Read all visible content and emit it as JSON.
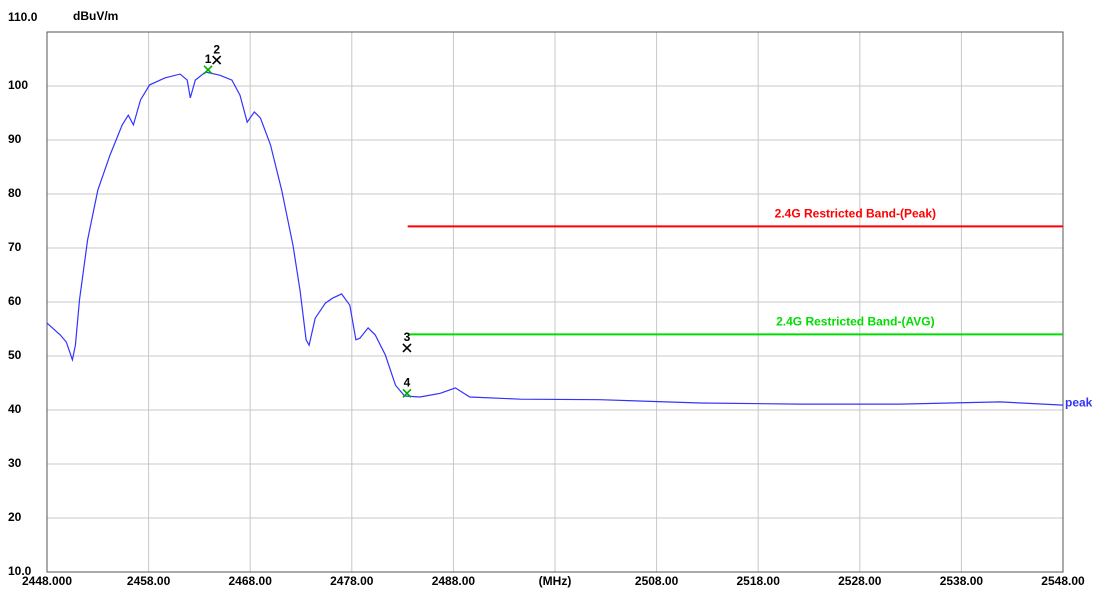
{
  "chart_data": {
    "type": "line",
    "y_unit": "dBuV/m",
    "xlim": [
      2448,
      2548
    ],
    "ylim": [
      10,
      110
    ],
    "grid": true,
    "xticks": [
      {
        "value": 2448,
        "label": "2448.000"
      },
      {
        "value": 2458,
        "label": "2458.00"
      },
      {
        "value": 2468,
        "label": "2468.00"
      },
      {
        "value": 2478,
        "label": "2478.00"
      },
      {
        "value": 2488,
        "label": "2488.00"
      },
      {
        "value": 2498,
        "label": "(MHz)"
      },
      {
        "value": 2508,
        "label": "2508.00"
      },
      {
        "value": 2518,
        "label": "2518.00"
      },
      {
        "value": 2528,
        "label": "2528.00"
      },
      {
        "value": 2538,
        "label": "2538.00"
      },
      {
        "value": 2548,
        "label": "2548.00"
      }
    ],
    "yticks": [
      {
        "value": 110,
        "label": "110.0"
      },
      100,
      90,
      80,
      70,
      60,
      50,
      40,
      30,
      20,
      {
        "value": 10,
        "label": "10.0"
      }
    ],
    "x": [
      2448,
      2449.3,
      2449.9,
      2450.5,
      2450.8,
      2451.2,
      2452,
      2453,
      2454.2,
      2455.4,
      2456,
      2456.5,
      2457.2,
      2458.1,
      2459.6,
      2461.1,
      2461.8,
      2462.1,
      2462.6,
      2463.6,
      2465,
      2466.2,
      2467,
      2467.7,
      2468.4,
      2469,
      2470,
      2471.1,
      2472.2,
      2472.9,
      2473.5,
      2473.8,
      2474.4,
      2475.4,
      2476.1,
      2477,
      2477.8,
      2478.4,
      2478.8,
      2479.6,
      2480.3,
      2481.3,
      2482.3,
      2483.2,
      2484.7,
      2486.7,
      2488.2,
      2489.6,
      2494.6,
      2502.4,
      2512.3,
      2522.1,
      2532,
      2541.8,
      2548
    ],
    "series": [
      {
        "name": "peak",
        "color": "#3333ff",
        "values": [
          56.1,
          53.9,
          52.6,
          49.3,
          52,
          60.4,
          71.5,
          80.7,
          87.2,
          92.8,
          94.6,
          92.8,
          97.4,
          100.2,
          101.5,
          102.2,
          101.1,
          97.8,
          101.1,
          102.6,
          102,
          101.1,
          98.3,
          93.3,
          95.2,
          94.1,
          89.1,
          80.7,
          70.6,
          62.2,
          53,
          52,
          57,
          59.8,
          60.7,
          61.5,
          59.4,
          53,
          53.3,
          55.2,
          53.9,
          50.2,
          44.6,
          42.6,
          42.4,
          43.1,
          44.1,
          42.4,
          42,
          41.9,
          41.3,
          41.1,
          41.1,
          41.5,
          40.9
        ]
      }
    ],
    "limits": [
      {
        "name": "2.4G Restricted Band-(Peak)",
        "color": "#ff0000",
        "value": 74,
        "x_start": 2483.5,
        "x_end": 2548
      },
      {
        "name": "2.4G Restricted Band-(AVG)",
        "color": "#00dd00",
        "value": 54,
        "x_start": 2483.5,
        "x_end": 2548
      }
    ],
    "markers": [
      {
        "label": "1",
        "x": 2463.85,
        "y": 103.0,
        "color": "#00aa00"
      },
      {
        "label": "2",
        "x": 2464.7,
        "y": 104.8,
        "color": "#000000"
      },
      {
        "label": "3",
        "x": 2483.43,
        "y": 51.5,
        "color": "#000000"
      },
      {
        "label": "4",
        "x": 2483.43,
        "y": 43.1,
        "color": "#00aa00"
      }
    ]
  }
}
